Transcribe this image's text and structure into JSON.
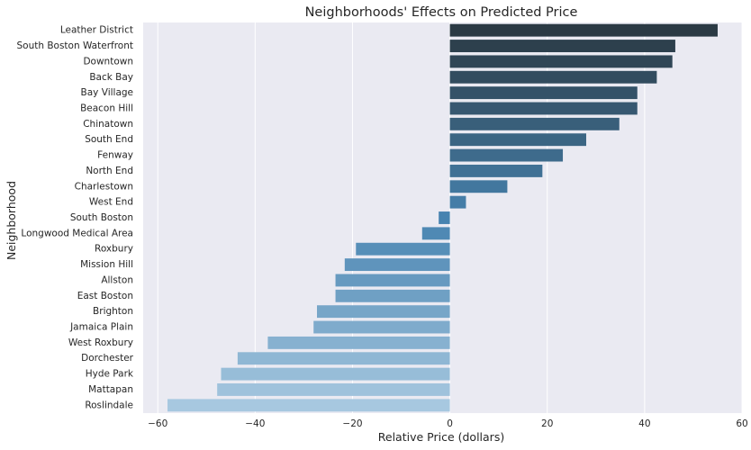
{
  "chart_data": {
    "type": "bar",
    "orientation": "horizontal",
    "title": "Neighborhoods' Effects on Predicted Price",
    "xlabel": "Relative Price (dollars)",
    "ylabel": "Neighborhood",
    "xlim": [
      -63,
      60
    ],
    "xticks": [
      -60,
      -40,
      -20,
      0,
      20,
      40,
      60
    ],
    "xtick_labels": [
      "−60",
      "−40",
      "−20",
      "0",
      "20",
      "40",
      "60"
    ],
    "grid": true,
    "palette": "Blues_d (dark to light, top to bottom)",
    "colors": {
      "plot_background": "#eaeaf2",
      "grid": "#ffffff",
      "bar_dark": "#2b3a44",
      "bar_mid": "#4783b0",
      "bar_light": "#a7c8e0"
    },
    "categories": [
      "Leather District",
      "South Boston Waterfront",
      "Downtown",
      "Back Bay",
      "Bay Village",
      "Beacon Hill",
      "Chinatown",
      "South End",
      "Fenway",
      "North End",
      "Charlestown",
      "West End",
      "South Boston",
      "Longwood Medical Area",
      "Roxbury",
      "Mission Hill",
      "Allston",
      "East Boston",
      "Brighton",
      "Jamaica Plain",
      "West Roxbury",
      "Dorchester",
      "Hyde Park",
      "Mattapan",
      "Roslindale"
    ],
    "values": [
      55,
      46.3,
      45.7,
      42.5,
      38.5,
      38.5,
      34.8,
      28,
      23.2,
      19,
      11.8,
      3.3,
      -2.3,
      -5.7,
      -19.3,
      -21.6,
      -23.5,
      -23.5,
      -27.3,
      -28,
      -37.4,
      -43.6,
      -47,
      -47.8,
      -58
    ]
  }
}
